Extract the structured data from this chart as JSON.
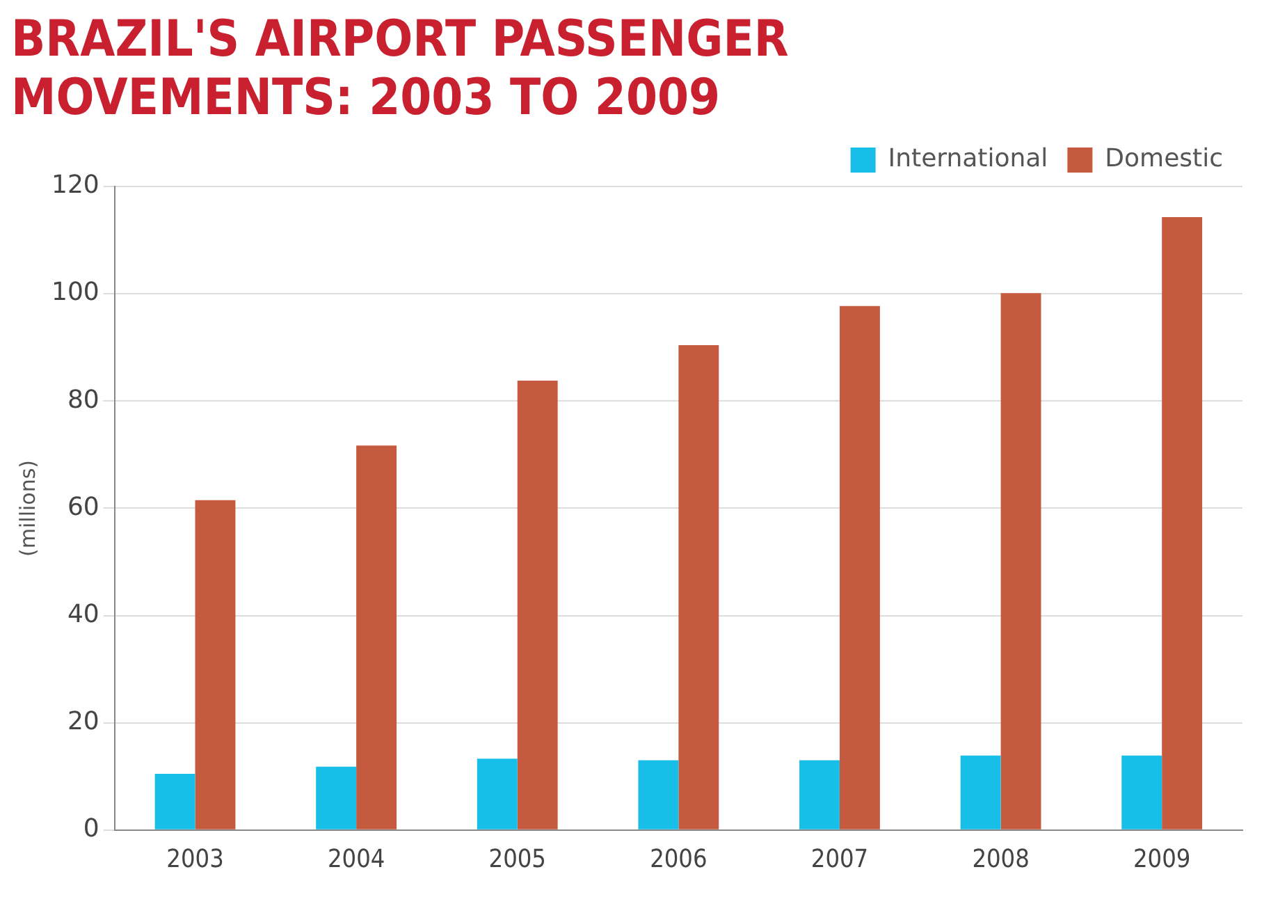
{
  "chart_data": {
    "type": "bar",
    "title": "BRAZIL'S AIRPORT PASSENGER MOVEMENTS: 2003 TO 2009",
    "ylabel": "(millions)",
    "categories": [
      "2003",
      "2004",
      "2005",
      "2006",
      "2007",
      "2008",
      "2009"
    ],
    "series": [
      {
        "name": "International",
        "color": "#17bfe8",
        "values": [
          10.5,
          11.8,
          13.3,
          13,
          13,
          13.9,
          13.9
        ]
      },
      {
        "name": "Domestic",
        "color": "#c65a3f",
        "values": [
          61.5,
          71.7,
          83.8,
          90.4,
          97.7,
          100.1,
          114.3
        ]
      }
    ],
    "ylim": [
      0,
      120
    ],
    "yticks": [
      0,
      20,
      40,
      60,
      80,
      100,
      120
    ],
    "grid": "y",
    "legend": "top right"
  }
}
